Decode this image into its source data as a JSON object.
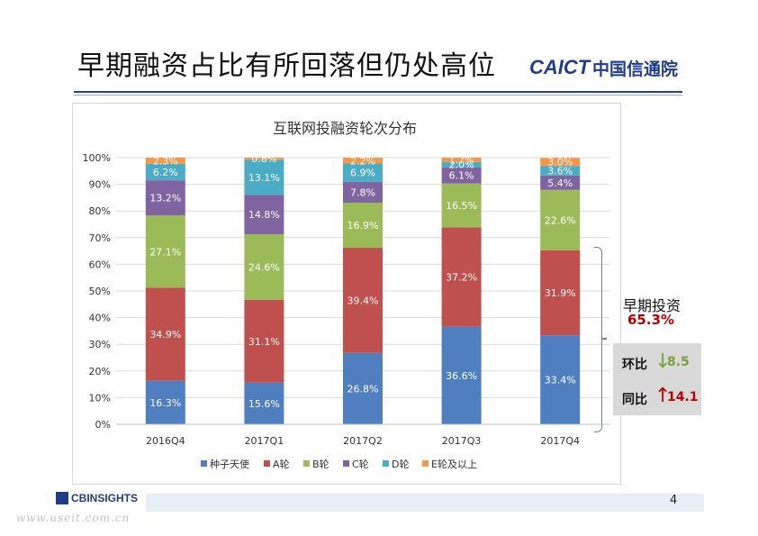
{
  "page": {
    "title": "早期融资占比有所回落但仍处高位",
    "logo_en": "CAICT",
    "logo_cn": "中国信通院",
    "page_number": "4",
    "source_logo": "CBINSIGHTS",
    "watermark": "www.useit.com.cn"
  },
  "annotation": {
    "early_label": "早期投资",
    "early_value": "65.3%",
    "qoq_label": "环比",
    "qoq_value": "8.5",
    "qoq_direction": "down",
    "yoy_label": "同比",
    "yoy_value": "14.1",
    "yoy_direction": "up"
  },
  "colors": {
    "seed": "#4f7fc1",
    "a": "#c0504d",
    "b": "#9bbb59",
    "c": "#8064a2",
    "d": "#4bacc6",
    "e": "#f79646",
    "qoq": "#77a03b",
    "yoy": "#c00000"
  },
  "chart_data": {
    "type": "stacked_bar_100",
    "title": "互联网投融资轮次分布",
    "categories": [
      "2016Q4",
      "2017Q1",
      "2017Q2",
      "2017Q3",
      "2017Q4"
    ],
    "y_ticks": [
      "0%",
      "10%",
      "20%",
      "30%",
      "40%",
      "50%",
      "60%",
      "70%",
      "80%",
      "90%",
      "100%"
    ],
    "ylim": [
      0,
      100
    ],
    "grid": true,
    "legend_position": "bottom",
    "series": [
      {
        "name": "种子天使",
        "color_key": "seed",
        "values": [
          16.3,
          15.6,
          26.8,
          36.6,
          33.4
        ],
        "labels": [
          "16.3%",
          "15.6%",
          "26.8%",
          "36.6%",
          "33.4%"
        ]
      },
      {
        "name": "A轮",
        "color_key": "a",
        "values": [
          34.9,
          31.1,
          39.4,
          37.2,
          31.9
        ],
        "labels": [
          "34.9%",
          "31.1%",
          "39.4%",
          "37.2%",
          "31.9%"
        ]
      },
      {
        "name": "B轮",
        "color_key": "b",
        "values": [
          27.1,
          24.6,
          16.9,
          16.5,
          22.6
        ],
        "labels": [
          "27.1%",
          "24.6%",
          "16.9%",
          "16.5%",
          "22.6%"
        ]
      },
      {
        "name": "C轮",
        "color_key": "c",
        "values": [
          13.2,
          14.8,
          7.8,
          6.1,
          5.4
        ],
        "labels": [
          "13.2%",
          "14.8%",
          "7.8%",
          "6.1%",
          "5.4%"
        ]
      },
      {
        "name": "D轮",
        "color_key": "d",
        "values": [
          6.2,
          13.1,
          6.9,
          2.0,
          3.6
        ],
        "labels": [
          "6.2%",
          "13.1%",
          "6.9%",
          "2.0%",
          "3.6%"
        ]
      },
      {
        "name": "E轮及以上",
        "color_key": "e",
        "values": [
          2.3,
          0.8,
          2.2,
          1.7,
          3.0
        ],
        "labels": [
          "2.3%",
          "0.8%",
          "2.2%",
          "1.7%",
          "3.0%"
        ]
      }
    ]
  }
}
